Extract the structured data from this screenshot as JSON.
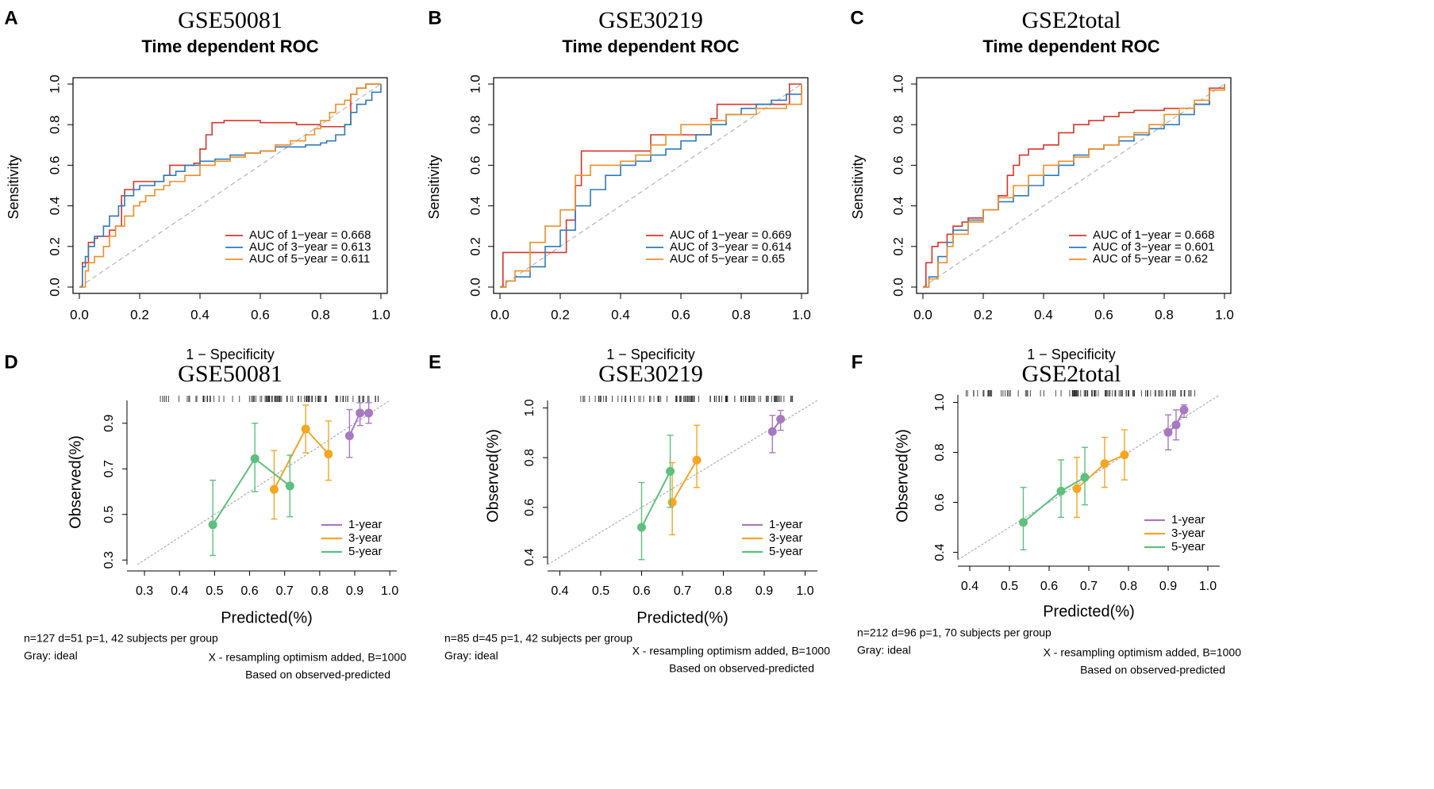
{
  "colors": {
    "roc_1y": "#d7352b",
    "roc_3y": "#2c7bbd",
    "roc_5y": "#ee8f28",
    "cal_1y": "#a879c0",
    "cal_3y": "#f5a623",
    "cal_5y": "#5ec07e",
    "ideal": "#b5b5b5"
  },
  "chart_data": [
    {
      "panel": "A",
      "type": "line",
      "dataset": "GSE50081",
      "title": "Time dependent ROC",
      "xlabel": "1 − Specificity",
      "ylabel": "Sensitivity",
      "xlim": [
        0,
        1
      ],
      "ylim": [
        0,
        1
      ],
      "ticks": [
        "0.0",
        "0.2",
        "0.4",
        "0.6",
        "0.8",
        "1.0"
      ],
      "series": [
        {
          "name": "AUC of 1−year = 0.668",
          "key": "1y",
          "x": [
            0,
            0.01,
            0.01,
            0.03,
            0.03,
            0.05,
            0.06,
            0.1,
            0.12,
            0.14,
            0.15,
            0.18,
            0.2,
            0.28,
            0.3,
            0.35,
            0.38,
            0.4,
            0.42,
            0.44,
            0.48,
            0.6,
            0.72,
            0.8,
            0.87,
            0.88,
            0.9,
            0.92,
            0.95,
            1.0
          ],
          "y": [
            0,
            0.1,
            0.12,
            0.2,
            0.22,
            0.24,
            0.25,
            0.28,
            0.3,
            0.45,
            0.48,
            0.52,
            0.52,
            0.55,
            0.6,
            0.6,
            0.61,
            0.68,
            0.75,
            0.81,
            0.82,
            0.81,
            0.8,
            0.79,
            0.79,
            0.8,
            0.95,
            0.98,
            1.0,
            1.0
          ]
        },
        {
          "name": "AUC of 3−year = 0.613",
          "key": "3y",
          "x": [
            0,
            0.01,
            0.02,
            0.03,
            0.05,
            0.08,
            0.1,
            0.13,
            0.15,
            0.18,
            0.2,
            0.25,
            0.28,
            0.32,
            0.35,
            0.4,
            0.45,
            0.5,
            0.55,
            0.6,
            0.65,
            0.7,
            0.75,
            0.8,
            0.82,
            0.85,
            0.88,
            0.9,
            0.92,
            0.95,
            0.97,
            1.0
          ],
          "y": [
            0,
            0.1,
            0.15,
            0.2,
            0.25,
            0.3,
            0.35,
            0.4,
            0.45,
            0.48,
            0.5,
            0.52,
            0.55,
            0.57,
            0.6,
            0.62,
            0.63,
            0.65,
            0.66,
            0.67,
            0.69,
            0.69,
            0.7,
            0.71,
            0.72,
            0.75,
            0.8,
            0.86,
            0.9,
            0.92,
            0.96,
            1.0
          ]
        },
        {
          "name": "AUC of 5−year = 0.611",
          "key": "5y",
          "x": [
            0,
            0.02,
            0.03,
            0.05,
            0.08,
            0.1,
            0.12,
            0.15,
            0.18,
            0.2,
            0.22,
            0.25,
            0.28,
            0.3,
            0.35,
            0.4,
            0.45,
            0.5,
            0.55,
            0.6,
            0.65,
            0.7,
            0.75,
            0.78,
            0.8,
            0.83,
            0.85,
            0.88,
            0.9,
            0.92,
            0.95,
            1.0
          ],
          "y": [
            0,
            0.08,
            0.12,
            0.15,
            0.2,
            0.25,
            0.3,
            0.35,
            0.4,
            0.42,
            0.45,
            0.48,
            0.5,
            0.52,
            0.55,
            0.6,
            0.62,
            0.64,
            0.66,
            0.67,
            0.7,
            0.72,
            0.75,
            0.78,
            0.82,
            0.86,
            0.9,
            0.92,
            0.95,
            0.98,
            1.0,
            1.0
          ]
        }
      ]
    },
    {
      "panel": "B",
      "type": "line",
      "dataset": "GSE30219",
      "title": "Time dependent ROC",
      "xlabel": "1 − Specificity",
      "ylabel": "Sensitivity",
      "xlim": [
        0,
        1
      ],
      "ylim": [
        0,
        1
      ],
      "ticks": [
        "0.0",
        "0.2",
        "0.4",
        "0.6",
        "0.8",
        "1.0"
      ],
      "series": [
        {
          "name": "AUC of 1−year = 0.669",
          "key": "1y",
          "x": [
            0,
            0.01,
            0.01,
            0.2,
            0.22,
            0.25,
            0.27,
            0.3,
            0.4,
            0.5,
            0.6,
            0.7,
            0.72,
            0.95,
            0.96,
            1.0
          ],
          "y": [
            0,
            0.02,
            0.17,
            0.17,
            0.33,
            0.5,
            0.67,
            0.67,
            0.67,
            0.75,
            0.75,
            0.83,
            0.9,
            0.9,
            1.0,
            1.0
          ]
        },
        {
          "name": "AUC of 3−year = 0.614",
          "key": "3y",
          "x": [
            0,
            0.02,
            0.05,
            0.1,
            0.15,
            0.2,
            0.25,
            0.3,
            0.35,
            0.4,
            0.45,
            0.5,
            0.55,
            0.6,
            0.65,
            0.7,
            0.75,
            0.8,
            0.85,
            0.9,
            0.95,
            1.0
          ],
          "y": [
            0,
            0.03,
            0.05,
            0.1,
            0.2,
            0.28,
            0.4,
            0.48,
            0.55,
            0.6,
            0.62,
            0.65,
            0.68,
            0.72,
            0.75,
            0.8,
            0.85,
            0.88,
            0.9,
            0.92,
            0.95,
            1.0
          ]
        },
        {
          "name": "AUC of 5−year = 0.65",
          "key": "5y",
          "x": [
            0,
            0.02,
            0.05,
            0.1,
            0.15,
            0.2,
            0.25,
            0.3,
            0.35,
            0.4,
            0.45,
            0.5,
            0.55,
            0.6,
            0.65,
            0.7,
            0.75,
            0.8,
            0.85,
            0.9,
            0.95,
            1.0
          ],
          "y": [
            0,
            0.03,
            0.08,
            0.22,
            0.3,
            0.38,
            0.55,
            0.6,
            0.6,
            0.62,
            0.65,
            0.7,
            0.75,
            0.8,
            0.8,
            0.82,
            0.85,
            0.85,
            0.88,
            0.88,
            0.9,
            1.0
          ]
        }
      ]
    },
    {
      "panel": "C",
      "type": "line",
      "dataset": "GSE2total",
      "title": "Time dependent ROC",
      "xlabel": "1 − Specificity",
      "ylabel": "Sensitivity",
      "xlim": [
        0,
        1
      ],
      "ylim": [
        0,
        1
      ],
      "ticks": [
        "0.0",
        "0.2",
        "0.4",
        "0.6",
        "0.8",
        "1.0"
      ],
      "series": [
        {
          "name": "AUC of 1−year = 0.668",
          "key": "1y",
          "x": [
            0,
            0.01,
            0.03,
            0.05,
            0.08,
            0.1,
            0.13,
            0.15,
            0.2,
            0.25,
            0.28,
            0.3,
            0.32,
            0.35,
            0.4,
            0.45,
            0.5,
            0.55,
            0.6,
            0.65,
            0.7,
            0.75,
            0.8,
            0.85,
            0.9,
            0.95,
            1.0
          ],
          "y": [
            0,
            0.12,
            0.2,
            0.22,
            0.26,
            0.3,
            0.32,
            0.34,
            0.38,
            0.45,
            0.55,
            0.6,
            0.65,
            0.68,
            0.7,
            0.76,
            0.8,
            0.82,
            0.84,
            0.86,
            0.87,
            0.87,
            0.88,
            0.88,
            0.9,
            0.98,
            1.0
          ]
        },
        {
          "name": "AUC of 3−year = 0.601",
          "key": "3y",
          "x": [
            0,
            0.02,
            0.05,
            0.08,
            0.1,
            0.15,
            0.2,
            0.25,
            0.3,
            0.35,
            0.4,
            0.45,
            0.5,
            0.55,
            0.6,
            0.65,
            0.7,
            0.75,
            0.8,
            0.85,
            0.9,
            0.95,
            1.0
          ],
          "y": [
            0,
            0.05,
            0.15,
            0.22,
            0.28,
            0.33,
            0.38,
            0.42,
            0.45,
            0.5,
            0.55,
            0.6,
            0.65,
            0.68,
            0.7,
            0.72,
            0.75,
            0.78,
            0.8,
            0.85,
            0.9,
            0.97,
            1.0
          ]
        },
        {
          "name": "AUC of 5−year = 0.62",
          "key": "5y",
          "x": [
            0,
            0.02,
            0.05,
            0.08,
            0.1,
            0.15,
            0.2,
            0.25,
            0.3,
            0.35,
            0.4,
            0.45,
            0.5,
            0.55,
            0.6,
            0.65,
            0.7,
            0.75,
            0.8,
            0.85,
            0.9,
            0.95,
            1.0
          ],
          "y": [
            0,
            0.04,
            0.12,
            0.2,
            0.26,
            0.32,
            0.38,
            0.44,
            0.5,
            0.55,
            0.6,
            0.62,
            0.64,
            0.68,
            0.7,
            0.74,
            0.76,
            0.8,
            0.85,
            0.88,
            0.92,
            0.97,
            1.0
          ]
        }
      ]
    },
    {
      "panel": "D",
      "type": "scatter",
      "dataset": "GSE50081",
      "xlabel": "Predicted(%)",
      "ylabel": "Observed(%)",
      "xlim": [
        0.25,
        1.02
      ],
      "ylim": [
        0.28,
        1.0
      ],
      "xticks": [
        "0.3",
        "0.4",
        "0.5",
        "0.6",
        "0.7",
        "0.8",
        "0.9",
        "1.0"
      ],
      "yticks": [
        "0.3",
        "0.5",
        "0.7",
        "0.9"
      ],
      "legend": [
        "1-year",
        "3-year",
        "5-year"
      ],
      "series": [
        {
          "key": "1y",
          "x": [
            0.885,
            0.915,
            0.94
          ],
          "y": [
            0.845,
            0.945,
            0.945
          ],
          "lo": [
            0.75,
            0.89,
            0.9
          ],
          "hi": [
            0.96,
            0.99,
            0.99
          ]
        },
        {
          "key": "3y",
          "x": [
            0.67,
            0.76,
            0.825
          ],
          "y": [
            0.61,
            0.875,
            0.765
          ],
          "lo": [
            0.48,
            0.77,
            0.65
          ],
          "hi": [
            0.78,
            0.98,
            0.91
          ]
        },
        {
          "key": "5y",
          "x": [
            0.495,
            0.615,
            0.715
          ],
          "y": [
            0.455,
            0.745,
            0.625
          ],
          "lo": [
            0.32,
            0.6,
            0.49
          ],
          "hi": [
            0.65,
            0.9,
            0.76
          ]
        }
      ],
      "footnote_left": [
        "n=127 d=51 p=1, 42 subjects per group",
        "Gray: ideal"
      ],
      "footnote_right": [
        "X - resampling optimism added, B=1000",
        "Based on observed-predicted"
      ]
    },
    {
      "panel": "E",
      "type": "scatter",
      "dataset": "GSE30219",
      "xlabel": "Predicted(%)",
      "ylabel": "Observed(%)",
      "xlim": [
        0.37,
        1.03
      ],
      "ylim": [
        0.37,
        1.03
      ],
      "xticks": [
        "0.4",
        "0.5",
        "0.6",
        "0.7",
        "0.8",
        "0.9",
        "1.0"
      ],
      "yticks": [
        "0.4",
        "0.6",
        "0.8",
        "1.0"
      ],
      "legend": [
        "1-year",
        "3-year",
        "5-year"
      ],
      "series": [
        {
          "key": "1y",
          "x": [
            0.92,
            0.94
          ],
          "y": [
            0.905,
            0.955
          ],
          "lo": [
            0.82,
            0.91
          ],
          "hi": [
            0.97,
            0.99
          ]
        },
        {
          "key": "3y",
          "x": [
            0.675,
            0.735
          ],
          "y": [
            0.62,
            0.79
          ],
          "lo": [
            0.49,
            0.68
          ],
          "hi": [
            0.78,
            0.93
          ]
        },
        {
          "key": "5y",
          "x": [
            0.6,
            0.67
          ],
          "y": [
            0.52,
            0.745
          ],
          "lo": [
            0.39,
            0.6
          ],
          "hi": [
            0.7,
            0.89
          ]
        }
      ],
      "footnote_left": [
        "n=85 d=45 p=1, 42 subjects per group",
        "Gray: ideal"
      ],
      "footnote_right": [
        "X - resampling optimism added, B=1000",
        "Based on observed-predicted"
      ]
    },
    {
      "panel": "F",
      "type": "scatter",
      "dataset": "GSE2total",
      "xlabel": "Predicted(%)",
      "ylabel": "Observed(%)",
      "xlim": [
        0.37,
        1.03
      ],
      "ylim": [
        0.37,
        1.03
      ],
      "xticks": [
        "0.4",
        "0.5",
        "0.6",
        "0.7",
        "0.8",
        "0.9",
        "1.0"
      ],
      "yticks": [
        "0.4",
        "0.6",
        "0.8",
        "1.0"
      ],
      "legend": [
        "1-year",
        "3-year",
        "5-year"
      ],
      "series": [
        {
          "key": "1y",
          "x": [
            0.9,
            0.92,
            0.94
          ],
          "y": [
            0.88,
            0.91,
            0.97
          ],
          "lo": [
            0.81,
            0.85,
            0.94
          ],
          "hi": [
            0.95,
            0.97,
            0.99
          ]
        },
        {
          "key": "3y",
          "x": [
            0.67,
            0.74,
            0.79
          ],
          "y": [
            0.655,
            0.755,
            0.79
          ],
          "lo": [
            0.54,
            0.66,
            0.69
          ],
          "hi": [
            0.78,
            0.86,
            0.89
          ]
        },
        {
          "key": "5y",
          "x": [
            0.535,
            0.63,
            0.69
          ],
          "y": [
            0.52,
            0.645,
            0.7
          ],
          "lo": [
            0.41,
            0.54,
            0.59
          ],
          "hi": [
            0.66,
            0.77,
            0.82
          ]
        }
      ],
      "footnote_left": [
        "n=212 d=96 p=1, 70 subjects per group",
        "Gray: ideal"
      ],
      "footnote_right": [
        "X - resampling optimism added, B=1000",
        "Based on observed-predicted"
      ]
    }
  ]
}
